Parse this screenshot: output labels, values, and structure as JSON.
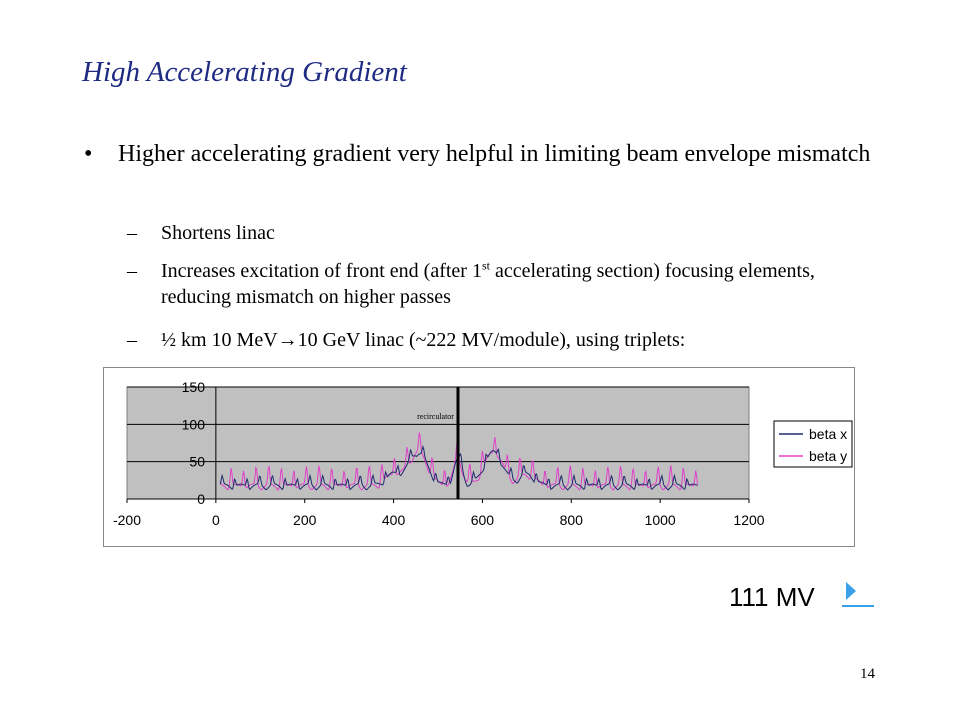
{
  "slide": {
    "title": "High Accelerating Gradient",
    "bullet": "Higher accelerating gradient very helpful in limiting beam envelope mismatch",
    "sub_bullets": {
      "shortens": "Shortens linac",
      "increases_pre": "Increases excitation of front end (after 1",
      "increases_sup": "st",
      "increases_post": " accelerating section) focusing elements, reducing mismatch on higher passes",
      "linac_pre": "½ km 10 MeV",
      "linac_arrow": "→",
      "linac_post": "10 GeV linac (~222 MV/module), using triplets:"
    },
    "mv_label": "111 MV",
    "page_number": "14"
  },
  "chart_data": {
    "type": "line",
    "x_ticks": [
      -200,
      0,
      200,
      400,
      600,
      800,
      1000,
      1200
    ],
    "y_ticks": [
      0,
      50,
      100,
      150
    ],
    "xlim": [
      -200,
      1200
    ],
    "ylim": [
      0,
      150
    ],
    "grid": "horizontal",
    "legend_position": "right",
    "annotation": "recirculator",
    "annotation_x": 545,
    "series": [
      {
        "name": "beta x",
        "color": "#1f2a6e"
      },
      {
        "name": "beta y",
        "color": "#e040c8"
      }
    ]
  }
}
